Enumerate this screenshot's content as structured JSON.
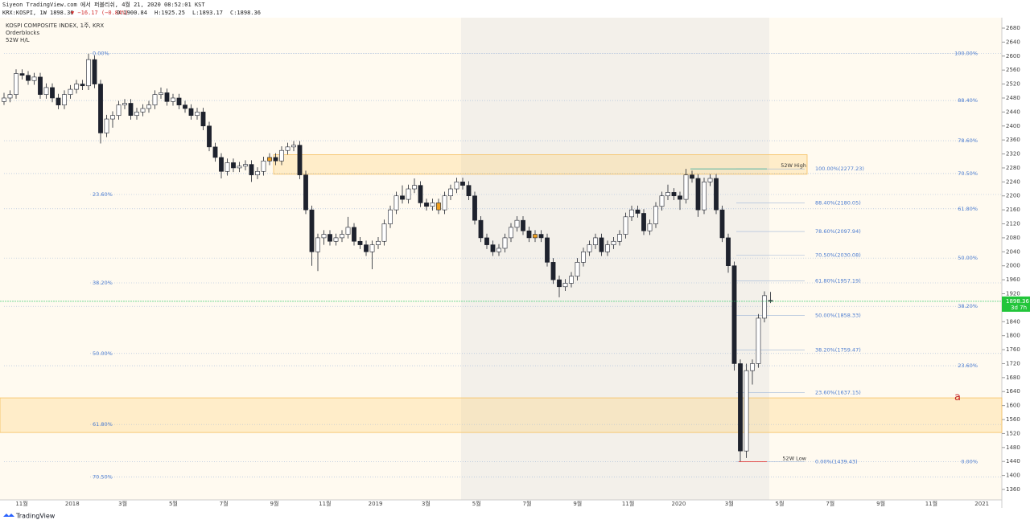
{
  "header": {
    "published": "Siyeon TradingView.com 에서 퍼블리쉬, 4월 21, 2020 08:52:01 KST",
    "symbol": "KRX:KOSPI, 1W 1898.36",
    "change": "▼ −16.17 (−0.84%)",
    "open": "O:1900.84",
    "high": "H:1925.25",
    "low": "L:1893.17",
    "close": "C:1898.36"
  },
  "legend": [
    "KOSPI COMPOSITE INDEX, 1주, KRX",
    "Orderblocks",
    "52W H/L"
  ],
  "footer": "TradingView",
  "chart_data": {
    "type": "candlestick",
    "ylim": [
      1340,
      2700
    ],
    "yticks": [
      2680,
      2640,
      2600,
      2560,
      2520,
      2480,
      2440,
      2400,
      2360,
      2320,
      2280,
      2240,
      2200,
      2160,
      2120,
      2080,
      2040,
      2000,
      1960,
      1920,
      1880,
      1840,
      1800,
      1760,
      1720,
      1680,
      1640,
      1600,
      1560,
      1520,
      1480,
      1440,
      1400,
      1360
    ],
    "xticks": [
      "11월",
      "2018",
      "3월",
      "5월",
      "7월",
      "9월",
      "11월",
      "2019",
      "3월",
      "5월",
      "7월",
      "9월",
      "11월",
      "2020",
      "3월",
      "5월",
      "7월",
      "9월",
      "11월",
      "2021"
    ],
    "up_color": "#ffffff",
    "down_color": "#1e222d",
    "orderblock_color": "#f0a020",
    "orderblock_candles": [
      44,
      72,
      88
    ],
    "candles": [
      [
        2470,
        2495,
        2460,
        2480
      ],
      [
        2480,
        2502,
        2468,
        2490
      ],
      [
        2490,
        2562,
        2478,
        2550
      ],
      [
        2550,
        2562,
        2533,
        2545
      ],
      [
        2545,
        2557,
        2518,
        2530
      ],
      [
        2530,
        2552,
        2518,
        2540
      ],
      [
        2540,
        2552,
        2478,
        2490
      ],
      [
        2490,
        2522,
        2478,
        2510
      ],
      [
        2510,
        2522,
        2468,
        2480
      ],
      [
        2480,
        2492,
        2448,
        2460
      ],
      [
        2460,
        2502,
        2448,
        2490
      ],
      [
        2490,
        2517,
        2478,
        2505
      ],
      [
        2505,
        2532,
        2493,
        2520
      ],
      [
        2520,
        2532,
        2503,
        2515
      ],
      [
        2515,
        2607,
        2503,
        2590
      ],
      [
        2590,
        2602,
        2508,
        2520
      ],
      [
        2520,
        2532,
        2350,
        2380
      ],
      [
        2380,
        2432,
        2368,
        2420
      ],
      [
        2420,
        2442,
        2395,
        2430
      ],
      [
        2430,
        2472,
        2418,
        2460
      ],
      [
        2460,
        2477,
        2448,
        2465
      ],
      [
        2465,
        2477,
        2418,
        2430
      ],
      [
        2430,
        2452,
        2418,
        2440
      ],
      [
        2440,
        2462,
        2428,
        2450
      ],
      [
        2450,
        2472,
        2438,
        2460
      ],
      [
        2460,
        2502,
        2448,
        2490
      ],
      [
        2490,
        2510,
        2478,
        2495
      ],
      [
        2495,
        2507,
        2458,
        2470
      ],
      [
        2470,
        2492,
        2458,
        2480
      ],
      [
        2480,
        2492,
        2448,
        2460
      ],
      [
        2460,
        2472,
        2438,
        2450
      ],
      [
        2450,
        2462,
        2418,
        2430
      ],
      [
        2430,
        2452,
        2418,
        2440
      ],
      [
        2440,
        2452,
        2388,
        2400
      ],
      [
        2400,
        2412,
        2328,
        2340
      ],
      [
        2340,
        2352,
        2298,
        2310
      ],
      [
        2310,
        2322,
        2250,
        2270
      ],
      [
        2270,
        2307,
        2258,
        2295
      ],
      [
        2295,
        2307,
        2268,
        2280
      ],
      [
        2280,
        2297,
        2268,
        2285
      ],
      [
        2285,
        2302,
        2273,
        2290
      ],
      [
        2290,
        2302,
        2240,
        2260
      ],
      [
        2260,
        2282,
        2248,
        2270
      ],
      [
        2270,
        2312,
        2258,
        2300
      ],
      [
        2300,
        2322,
        2288,
        2310
      ],
      [
        2310,
        2322,
        2288,
        2300
      ],
      [
        2300,
        2342,
        2288,
        2330
      ],
      [
        2330,
        2352,
        2318,
        2340
      ],
      [
        2340,
        2357,
        2328,
        2345
      ],
      [
        2345,
        2357,
        2248,
        2260
      ],
      [
        2260,
        2272,
        2148,
        2160
      ],
      [
        2160,
        2172,
        2000,
        2040
      ],
      [
        2040,
        2092,
        1985,
        2080
      ],
      [
        2080,
        2102,
        2060,
        2090
      ],
      [
        2090,
        2102,
        2058,
        2070
      ],
      [
        2070,
        2092,
        2058,
        2080
      ],
      [
        2080,
        2102,
        2068,
        2090
      ],
      [
        2090,
        2140,
        2078,
        2110
      ],
      [
        2110,
        2122,
        2058,
        2070
      ],
      [
        2070,
        2082,
        2048,
        2060
      ],
      [
        2060,
        2072,
        2028,
        2040
      ],
      [
        2040,
        2072,
        1990,
        2060
      ],
      [
        2060,
        2082,
        2048,
        2070
      ],
      [
        2070,
        2132,
        2058,
        2120
      ],
      [
        2120,
        2172,
        2108,
        2160
      ],
      [
        2160,
        2212,
        2148,
        2200
      ],
      [
        2200,
        2230,
        2178,
        2190
      ],
      [
        2190,
        2232,
        2178,
        2220
      ],
      [
        2220,
        2250,
        2208,
        2230
      ],
      [
        2230,
        2242,
        2168,
        2180
      ],
      [
        2180,
        2192,
        2158,
        2170
      ],
      [
        2170,
        2192,
        2158,
        2180
      ],
      [
        2180,
        2192,
        2148,
        2160
      ],
      [
        2160,
        2212,
        2148,
        2200
      ],
      [
        2200,
        2232,
        2188,
        2220
      ],
      [
        2220,
        2252,
        2208,
        2240
      ],
      [
        2240,
        2252,
        2218,
        2230
      ],
      [
        2230,
        2242,
        2188,
        2200
      ],
      [
        2200,
        2212,
        2118,
        2130
      ],
      [
        2130,
        2142,
        2068,
        2080
      ],
      [
        2080,
        2092,
        2048,
        2060
      ],
      [
        2060,
        2072,
        2028,
        2040
      ],
      [
        2040,
        2062,
        2028,
        2050
      ],
      [
        2050,
        2092,
        2038,
        2080
      ],
      [
        2080,
        2122,
        2068,
        2110
      ],
      [
        2110,
        2142,
        2098,
        2130
      ],
      [
        2130,
        2142,
        2088,
        2100
      ],
      [
        2100,
        2112,
        2068,
        2080
      ],
      [
        2080,
        2102,
        2068,
        2090
      ],
      [
        2090,
        2102,
        2068,
        2080
      ],
      [
        2080,
        2092,
        1998,
        2010
      ],
      [
        2010,
        2022,
        1948,
        1960
      ],
      [
        1960,
        1972,
        1910,
        1940
      ],
      [
        1940,
        1962,
        1928,
        1950
      ],
      [
        1950,
        1982,
        1938,
        1970
      ],
      [
        1970,
        2022,
        1958,
        2010
      ],
      [
        2010,
        2052,
        1998,
        2040
      ],
      [
        2040,
        2072,
        2028,
        2060
      ],
      [
        2060,
        2092,
        2048,
        2080
      ],
      [
        2080,
        2092,
        2028,
        2040
      ],
      [
        2040,
        2072,
        2028,
        2060
      ],
      [
        2060,
        2082,
        2048,
        2070
      ],
      [
        2070,
        2102,
        2058,
        2090
      ],
      [
        2090,
        2152,
        2078,
        2140
      ],
      [
        2140,
        2172,
        2128,
        2160
      ],
      [
        2160,
        2172,
        2138,
        2150
      ],
      [
        2150,
        2162,
        2088,
        2100
      ],
      [
        2100,
        2132,
        2088,
        2120
      ],
      [
        2120,
        2182,
        2108,
        2170
      ],
      [
        2170,
        2212,
        2158,
        2200
      ],
      [
        2200,
        2232,
        2188,
        2210
      ],
      [
        2210,
        2222,
        2188,
        2200
      ],
      [
        2200,
        2212,
        2160,
        2190
      ],
      [
        2190,
        2277.23,
        2178,
        2260
      ],
      [
        2260,
        2272,
        2238,
        2250
      ],
      [
        2250,
        2262,
        2140,
        2160
      ],
      [
        2160,
        2252,
        2148,
        2240
      ],
      [
        2240,
        2262,
        2228,
        2250
      ],
      [
        2250,
        2262,
        2148,
        2160
      ],
      [
        2160,
        2172,
        2068,
        2080
      ],
      [
        2080,
        2092,
        1980,
        2000
      ],
      [
        2000,
        2012,
        1700,
        1720
      ],
      [
        1720,
        1732,
        1439.43,
        1470
      ],
      [
        1470,
        1720,
        1450,
        1700
      ],
      [
        1700,
        1732,
        1660,
        1720
      ],
      [
        1720,
        1862,
        1708,
        1850
      ],
      [
        1850,
        1927,
        1838,
        1914.53
      ],
      [
        1900.84,
        1925.25,
        1893.17,
        1898.36
      ]
    ],
    "countdown": "3d 7h",
    "zones": [
      {
        "top": 2318,
        "bottom": 2262
      },
      {
        "top": 1622,
        "bottom": 1523
      }
    ],
    "annotations": [
      {
        "text": "52W High",
        "value": 2277.23
      },
      {
        "text": "52W Low",
        "value": 1439.43
      },
      {
        "text": "a",
        "value": 1600
      }
    ],
    "fib_sets": [
      {
        "levels": [
          {
            "value": 2607,
            "label": "0.00%"
          },
          {
            "value": 2204,
            "label": "23.60%"
          },
          {
            "value": 1951,
            "label": "38.20%"
          },
          {
            "value": 1749,
            "label": "50.00%"
          },
          {
            "value": 1546,
            "label": "61.80%"
          },
          {
            "value": 1396,
            "label": "70.50%"
          }
        ]
      },
      {
        "levels": [
          {
            "value": 2607,
            "label": "100.00%"
          },
          {
            "value": 2473,
            "label": "88.40%"
          },
          {
            "value": 2358,
            "label": "78.60%"
          },
          {
            "value": 2264,
            "label": "70.50%"
          },
          {
            "value": 2163,
            "label": "61.80%"
          },
          {
            "value": 2022,
            "label": "50.00%"
          },
          {
            "value": 1884,
            "label": "38.20%"
          },
          {
            "value": 1714,
            "label": "23.60%"
          },
          {
            "value": 1439,
            "label": "0.00%"
          }
        ]
      },
      {
        "levels": [
          {
            "value": 2277.23,
            "label": "100.00%(2277.23)"
          },
          {
            "value": 2180.05,
            "label": "88.40%(2180.05)"
          },
          {
            "value": 2097.94,
            "label": "78.60%(2097.94)"
          },
          {
            "value": 2030.08,
            "label": "70.50%(2030.08)"
          },
          {
            "value": 1957.19,
            "label": "61.80%(1957.19)"
          },
          {
            "value": 1858.33,
            "label": "50.00%(1858.33)"
          },
          {
            "value": 1759.47,
            "label": "38.20%(1759.47)"
          },
          {
            "value": 1637.15,
            "label": "23.60%(1637.15)"
          },
          {
            "value": 1439.43,
            "label": "0.00%(1439.43)"
          }
        ]
      }
    ]
  }
}
